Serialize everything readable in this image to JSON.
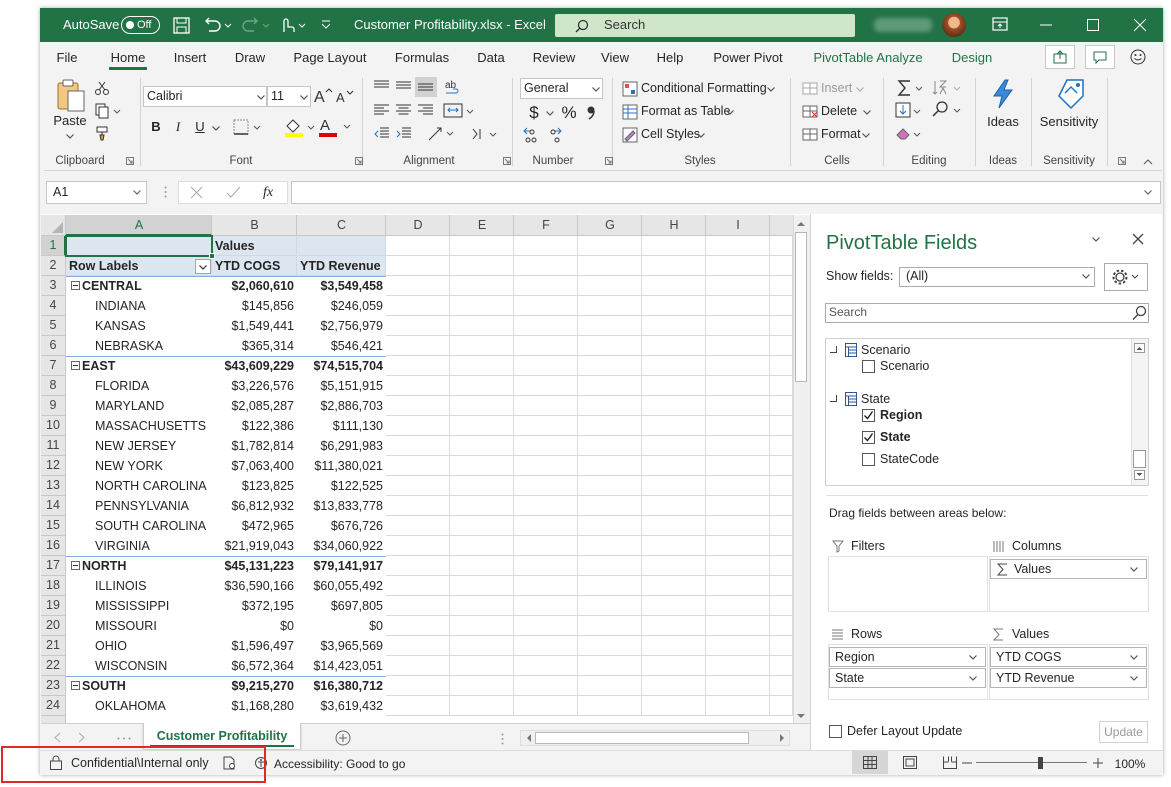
{
  "title_bar": {
    "autosave": "AutoSave",
    "autosave_state": "Off",
    "file_title": "Customer Profitability.xlsx  -  Excel",
    "search": "Search"
  },
  "ribbon_tabs": [
    "File",
    "Home",
    "Insert",
    "Draw",
    "Page Layout",
    "Formulas",
    "Data",
    "Review",
    "View",
    "Help",
    "Power Pivot",
    "PivotTable Analyze",
    "Design"
  ],
  "ribbon": {
    "clipboard": {
      "label": "Clipboard",
      "paste": "Paste"
    },
    "font": {
      "label": "Font",
      "name": "Calibri",
      "size": "11",
      "bold": "B",
      "italic": "I",
      "underline": "U"
    },
    "alignment": {
      "label": "Alignment"
    },
    "number": {
      "label": "Number",
      "format": "General",
      "currency": "$",
      "percent": "%"
    },
    "styles": {
      "label": "Styles",
      "items": [
        "Conditional Formatting",
        "Format as Table",
        "Cell Styles"
      ]
    },
    "cells": {
      "label": "Cells",
      "items": [
        "Insert",
        "Delete",
        "Format"
      ]
    },
    "editing": {
      "label": "Editing"
    },
    "ideas": {
      "label": "Ideas",
      "button": "Ideas"
    },
    "sensitivity": {
      "label": "Sensitivity",
      "button": "Sensitivity"
    }
  },
  "formula_bar": {
    "name_box": "A1",
    "fx": "fx"
  },
  "sheet": {
    "columns": [
      "A",
      "B",
      "C",
      "D",
      "E",
      "F",
      "G",
      "H",
      "I"
    ],
    "rows": [
      "1",
      "2",
      "3",
      "4",
      "5",
      "6",
      "7",
      "8",
      "9",
      "10",
      "11",
      "12",
      "13",
      "14",
      "15",
      "16",
      "17",
      "18",
      "19",
      "20",
      "21",
      "22",
      "23",
      "24"
    ],
    "values_header": "Values",
    "row_labels_header": "Row Labels",
    "value_headers": [
      "YTD COGS",
      "YTD Revenue"
    ],
    "regions": [
      {
        "name": "CENTRAL",
        "cogs": "$2,060,610",
        "revenue": "$3,549,458",
        "states": [
          {
            "name": "INDIANA",
            "cogs": "$145,856",
            "revenue": "$246,059"
          },
          {
            "name": "KANSAS",
            "cogs": "$1,549,441",
            "revenue": "$2,756,979"
          },
          {
            "name": "NEBRASKA",
            "cogs": "$365,314",
            "revenue": "$546,421"
          }
        ]
      },
      {
        "name": "EAST",
        "cogs": "$43,609,229",
        "revenue": "$74,515,704",
        "states": [
          {
            "name": "FLORIDA",
            "cogs": "$3,226,576",
            "revenue": "$5,151,915"
          },
          {
            "name": "MARYLAND",
            "cogs": "$2,085,287",
            "revenue": "$2,886,703"
          },
          {
            "name": "MASSACHUSETTS",
            "cogs": "$122,386",
            "revenue": "$111,130"
          },
          {
            "name": "NEW JERSEY",
            "cogs": "$1,782,814",
            "revenue": "$6,291,983"
          },
          {
            "name": "NEW YORK",
            "cogs": "$7,063,400",
            "revenue": "$11,380,021"
          },
          {
            "name": "NORTH CAROLINA",
            "cogs": "$123,825",
            "revenue": "$122,525"
          },
          {
            "name": "PENNSYLVANIA",
            "cogs": "$6,812,932",
            "revenue": "$13,833,778"
          },
          {
            "name": "SOUTH CAROLINA",
            "cogs": "$472,965",
            "revenue": "$676,726"
          },
          {
            "name": "VIRGINIA",
            "cogs": "$21,919,043",
            "revenue": "$34,060,922"
          }
        ]
      },
      {
        "name": "NORTH",
        "cogs": "$45,131,223",
        "revenue": "$79,141,917",
        "states": [
          {
            "name": "ILLINOIS",
            "cogs": "$36,590,166",
            "revenue": "$60,055,492"
          },
          {
            "name": "MISSISSIPPI",
            "cogs": "$372,195",
            "revenue": "$697,805"
          },
          {
            "name": "MISSOURI",
            "cogs": "$0",
            "revenue": "$0"
          },
          {
            "name": "OHIO",
            "cogs": "$1,596,497",
            "revenue": "$3,965,569"
          },
          {
            "name": "WISCONSIN",
            "cogs": "$6,572,364",
            "revenue": "$14,423,051"
          }
        ]
      },
      {
        "name": "SOUTH",
        "cogs": "$9,215,270",
        "revenue": "$16,380,712",
        "states": [
          {
            "name": "OKLAHOMA",
            "cogs": "$1,168,280",
            "revenue": "$3,619,432"
          }
        ]
      }
    ]
  },
  "sheet_tab": "Customer Profitability",
  "status_bar": {
    "sensitivity": "Confidential\\Internal only",
    "accessibility": "Accessibility: Good to go",
    "zoom": "100%"
  },
  "pivot_pane": {
    "title": "PivotTable Fields",
    "show_fields_label": "Show fields:",
    "show_fields_value": "(All)",
    "search_placeholder": "Search",
    "tables": [
      {
        "name": "Scenario",
        "fields": [
          {
            "name": "Scenario",
            "checked": false
          }
        ]
      },
      {
        "name": "State",
        "fields": [
          {
            "name": "Region",
            "checked": true
          },
          {
            "name": "State",
            "checked": true
          },
          {
            "name": "StateCode",
            "checked": false
          }
        ]
      }
    ],
    "drag_hint": "Drag fields between areas below:",
    "areas": {
      "filters": {
        "label": "Filters"
      },
      "columns": {
        "label": "Columns",
        "items": [
          "Values"
        ]
      },
      "rows": {
        "label": "Rows",
        "items": [
          "Region",
          "State"
        ]
      },
      "values": {
        "label": "Values",
        "items": [
          "YTD COGS",
          "YTD Revenue"
        ]
      }
    },
    "defer_update": "Defer Layout Update",
    "update_button": "Update"
  }
}
